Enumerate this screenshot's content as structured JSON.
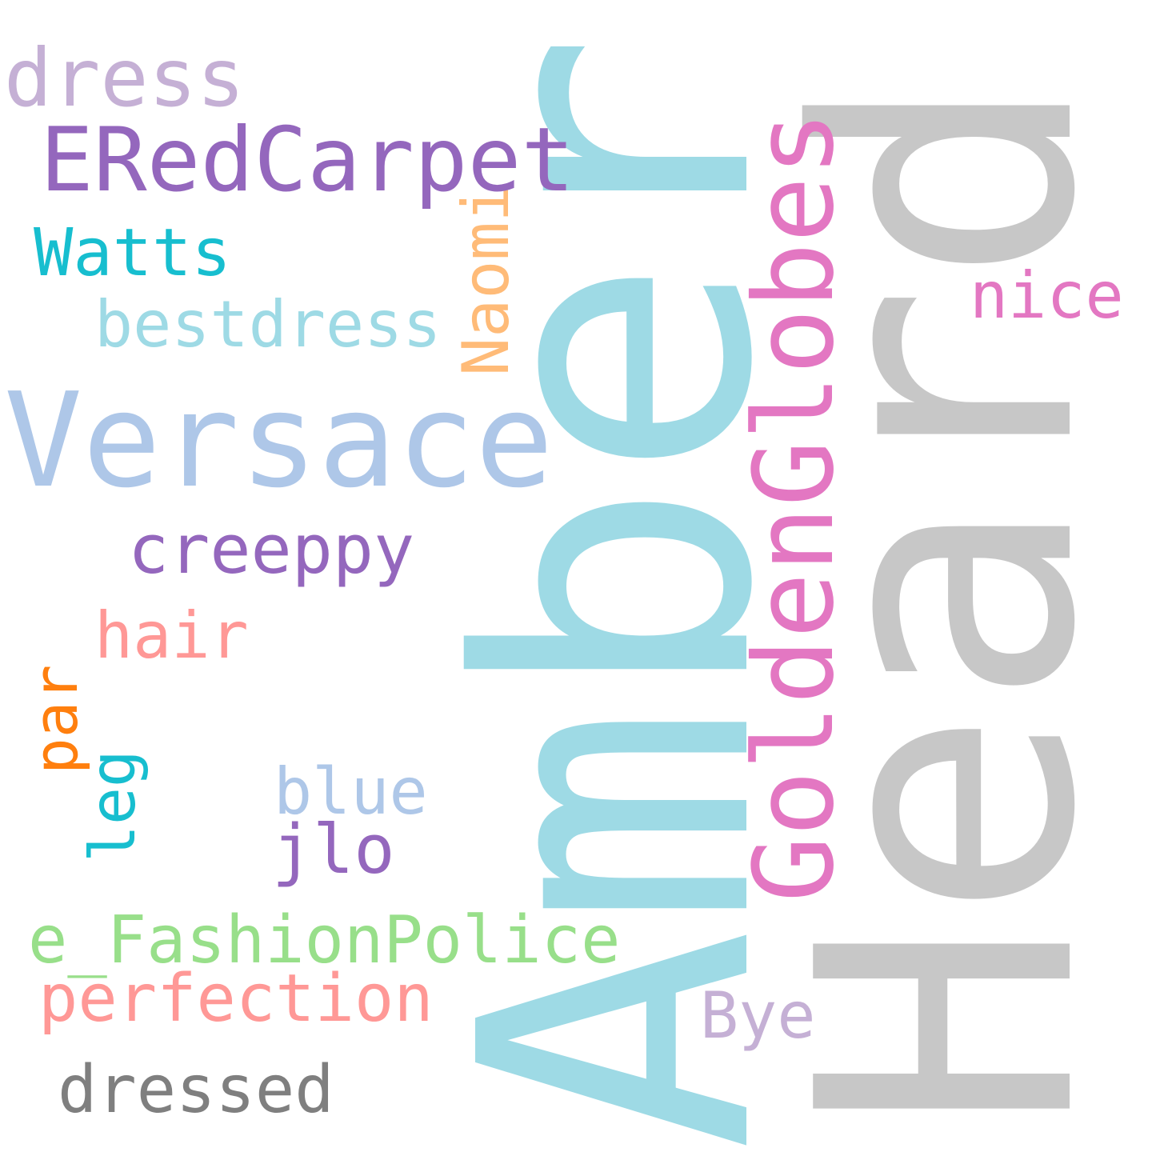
{
  "words": {
    "heard": {
      "text": "Heard",
      "color": "#c7c7c7"
    },
    "amber": {
      "text": "Amber",
      "color": "#9edae5"
    },
    "versace": {
      "text": "Versace",
      "color": "#aec7e8"
    },
    "goldenglobes": {
      "text": "GoldenGlobes",
      "color": "#e377c2"
    },
    "eredcarpet": {
      "text": "ERedCarpet",
      "color": "#9467bd"
    },
    "dress": {
      "text": "dress",
      "color": "#c5b0d5"
    },
    "watts": {
      "text": "Watts",
      "color": "#17becf"
    },
    "naomi": {
      "text": "Naomi",
      "color": "#ffbb78"
    },
    "bestdress": {
      "text": "bestdress",
      "color": "#9edae5"
    },
    "nice": {
      "text": "nice",
      "color": "#e377c2"
    },
    "creeppy": {
      "text": "creeppy",
      "color": "#9467bd"
    },
    "hair": {
      "text": "hair",
      "color": "#ff9896"
    },
    "par": {
      "text": "par",
      "color": "#ff7f0e"
    },
    "leg": {
      "text": "leg",
      "color": "#17becf"
    },
    "blue": {
      "text": "blue",
      "color": "#aec7e8"
    },
    "jlo": {
      "text": "jlo",
      "color": "#9467bd"
    },
    "e_fashionpolice": {
      "text": "e_FashionPolice",
      "color": "#98df8a"
    },
    "perfection": {
      "text": "perfection",
      "color": "#ff9896"
    },
    "bye": {
      "text": "Bye",
      "color": "#c5b0d5"
    },
    "dressed": {
      "text": "dressed",
      "color": "#7f7f7f"
    }
  }
}
